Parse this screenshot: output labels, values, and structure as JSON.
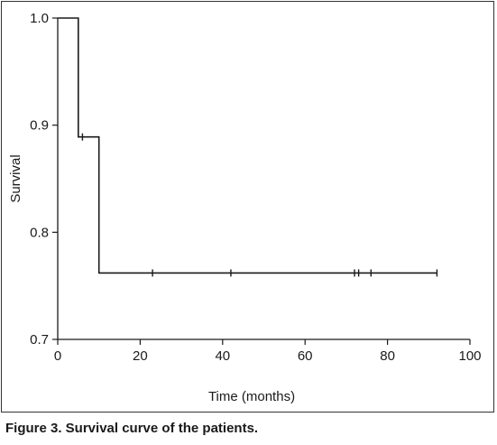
{
  "caption": "Figure 3. Survival curve of the patients.",
  "chart_data": {
    "type": "line",
    "title": "",
    "xlabel": "Time (months)",
    "ylabel": "Survival",
    "xlim": [
      0,
      100
    ],
    "ylim": [
      0.7,
      1.0
    ],
    "xticks": [
      0,
      20,
      40,
      60,
      80,
      100
    ],
    "yticks": [
      0.7,
      0.8,
      0.9,
      1.0
    ],
    "xtick_labels": [
      "0",
      "20",
      "40",
      "60",
      "80",
      "100"
    ],
    "ytick_labels": [
      "0.7",
      "0.8",
      "0.9",
      "1.0"
    ],
    "grid": false,
    "legend": "none",
    "line_color": "#1a1a1a",
    "series": [
      {
        "step": [
          {
            "x": 0,
            "y": 1.0
          },
          {
            "x": 5,
            "y": 1.0
          },
          {
            "x": 5,
            "y": 0.889
          },
          {
            "x": 10,
            "y": 0.889
          },
          {
            "x": 10,
            "y": 0.762
          },
          {
            "x": 92,
            "y": 0.762
          }
        ],
        "censored": [
          {
            "x": 6,
            "y": 0.889
          },
          {
            "x": 23,
            "y": 0.762
          },
          {
            "x": 42,
            "y": 0.762
          },
          {
            "x": 72,
            "y": 0.762
          },
          {
            "x": 73,
            "y": 0.762
          },
          {
            "x": 76,
            "y": 0.762
          },
          {
            "x": 92,
            "y": 0.762
          }
        ]
      }
    ]
  }
}
